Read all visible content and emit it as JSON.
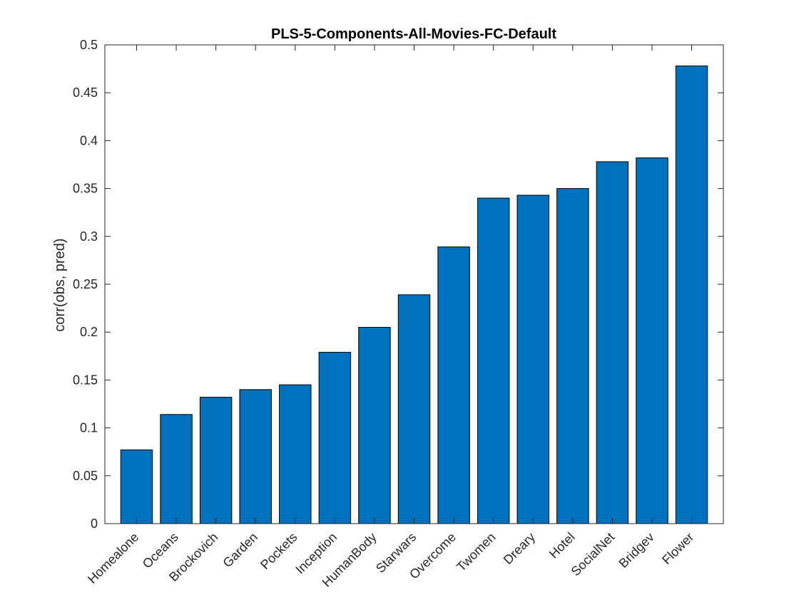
{
  "chart_data": {
    "type": "bar",
    "title": "PLS-5-Components-All-Movies-FC-Default",
    "xlabel": "",
    "ylabel": "corr(obs, pred)",
    "ylim": [
      0,
      0.5
    ],
    "yticks": [
      "0",
      "0.05",
      "0.1",
      "0.15",
      "0.2",
      "0.25",
      "0.3",
      "0.35",
      "0.4",
      "0.45",
      "0.5"
    ],
    "categories": [
      "Homealone",
      "Oceans",
      "Brockovich",
      "Garden",
      "Pockets",
      "Inception",
      "HumanBody",
      "Starwars",
      "Overcome",
      "Twomen",
      "Dreary",
      "Hotel",
      "SocialNet",
      "Bridgev",
      "Flower"
    ],
    "values": [
      0.077,
      0.114,
      0.132,
      0.14,
      0.145,
      0.179,
      0.205,
      0.239,
      0.289,
      0.34,
      0.343,
      0.35,
      0.378,
      0.382,
      0.478
    ],
    "bar_color": "#0072BD",
    "bar_edge_color": "#000000",
    "grid": false,
    "legend": "none"
  }
}
